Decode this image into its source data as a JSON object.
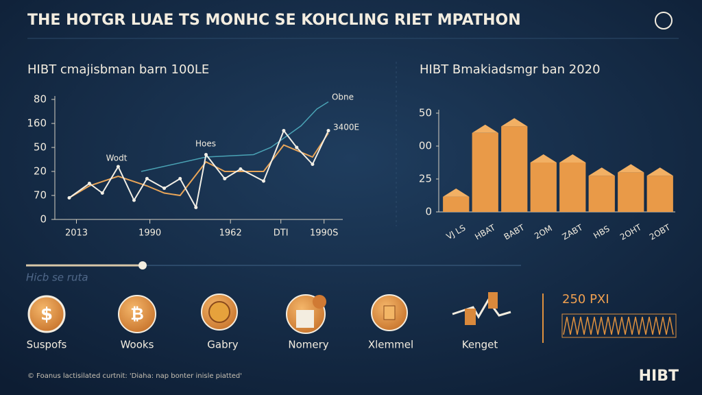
{
  "header": {
    "title": "THE HOTGR LUAE TS MONHC SE KOHCLING RIET MPATHON"
  },
  "chart_data": [
    {
      "type": "line",
      "title": "HIBT cmajisbman barn 100LE",
      "xlim": [
        0,
        20
      ],
      "ylim": [
        0,
        5
      ],
      "xticks": [
        {
          "value": 1.5,
          "label": "2013"
        },
        {
          "value": 6.6,
          "label": "1990"
        },
        {
          "value": 12.2,
          "label": "1962"
        },
        {
          "value": 15.7,
          "label": "DTI"
        },
        {
          "value": 18.7,
          "label": "1990S"
        }
      ],
      "yticks": [
        {
          "value": 0,
          "label": "0"
        },
        {
          "value": 1,
          "label": "70"
        },
        {
          "value": 2,
          "label": "20"
        },
        {
          "value": 3,
          "label": "50"
        },
        {
          "value": 4,
          "label": "160"
        },
        {
          "value": 5,
          "label": "80"
        }
      ],
      "annotations": [
        "Wodt",
        "Hoes",
        "Obne",
        "3400E"
      ],
      "series": [
        {
          "color": "#f2efe6",
          "x": [
            1.0,
            2.4,
            3.3,
            4.4,
            5.5,
            6.4,
            7.6,
            8.7,
            9.8,
            10.5,
            11.8,
            12.9,
            14.5,
            15.9,
            16.8,
            17.9,
            19.0
          ],
          "values": [
            0.9,
            1.5,
            1.1,
            2.2,
            0.8,
            1.7,
            1.3,
            1.7,
            0.5,
            2.7,
            1.7,
            2.1,
            1.6,
            3.7,
            3.0,
            2.3,
            3.7
          ]
        },
        {
          "color": "#e9a558",
          "x": [
            1.0,
            2.4,
            4.4,
            6.4,
            7.6,
            8.7,
            10.5,
            11.8,
            14.5,
            15.9,
            17.9,
            19.0
          ],
          "values": [
            0.9,
            1.4,
            1.8,
            1.4,
            1.1,
            1.0,
            2.4,
            2.0,
            2.0,
            3.1,
            2.6,
            3.6
          ]
        },
        {
          "color": "#4aa3b5",
          "x": [
            6.0,
            10.5,
            13.8,
            15.0,
            17.1,
            18.2,
            19.0
          ],
          "values": [
            2.0,
            2.6,
            2.7,
            3.0,
            3.9,
            4.6,
            4.9
          ]
        }
      ]
    },
    {
      "type": "bar",
      "title": "HIBT Bmakiadsmgr ban 2020",
      "color": "#e99a48",
      "categories": [
        "VJ LS",
        "HBAT",
        "BABT",
        "2OM",
        "ZABT",
        "HBS",
        "2OHT",
        "2OBT"
      ],
      "values": [
        0.46,
        2.4,
        2.6,
        1.5,
        1.5,
        1.1,
        1.2,
        1.1
      ],
      "ylim": [
        0,
        3
      ],
      "yticks": [
        {
          "value": 0,
          "label": "0"
        },
        {
          "value": 1,
          "label": "25"
        },
        {
          "value": 2,
          "label": "00"
        },
        {
          "value": 3,
          "label": "50"
        }
      ]
    }
  ],
  "slider": {
    "label": "Hicb se ruta"
  },
  "icons": [
    "Suspofs",
    "Wooks",
    "Gabry",
    "Nomery",
    "Xlemmel",
    "Kenget"
  ],
  "stat": {
    "label": "250 PXI"
  },
  "footer": {
    "text": "© Foanus lactisilated curtnit: 'Diaha: nap bonter inisle piatted'",
    "logo": "HIBT"
  }
}
